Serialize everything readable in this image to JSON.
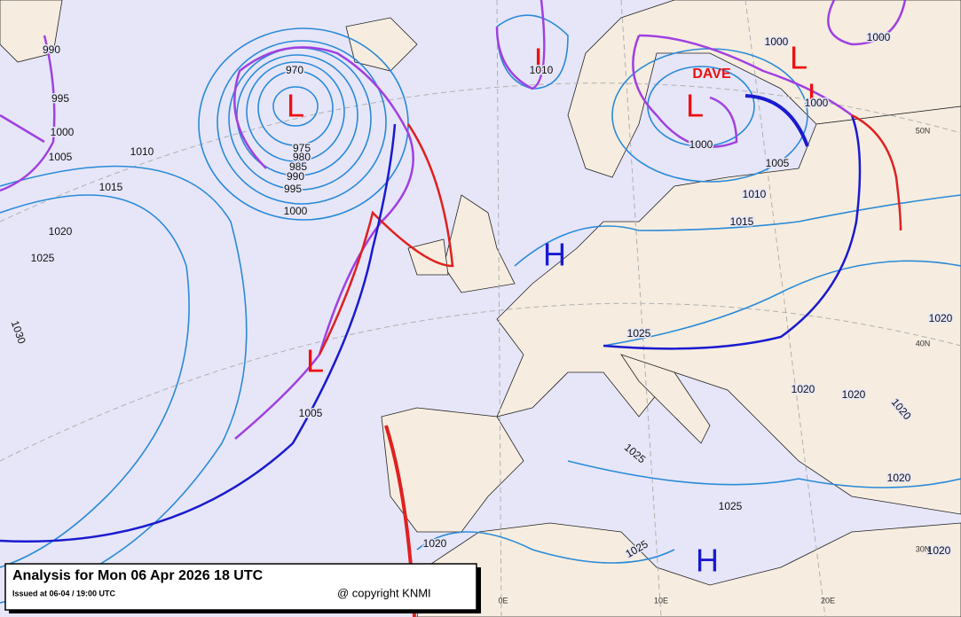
{
  "title": "Analysis for Mon 06 Apr 2026 18 UTC",
  "issued": "Issued at 06-04 / 19:00 UTC",
  "copyright": "@ copyright KNMI",
  "system_name": "DAVE",
  "pressure_centers": [
    {
      "label": "L",
      "kind": "low"
    },
    {
      "label": "L",
      "kind": "low"
    },
    {
      "label": "L",
      "kind": "low"
    },
    {
      "label": "L",
      "kind": "low"
    },
    {
      "label": "L",
      "kind": "low"
    },
    {
      "label": "L",
      "kind": "low"
    },
    {
      "label": "H",
      "kind": "high"
    },
    {
      "label": "H",
      "kind": "high"
    }
  ],
  "isobar_labels": [
    "990",
    "995",
    "1000",
    "1005",
    "1010",
    "1015",
    "1020",
    "1025",
    "1030",
    "970",
    "975",
    "980",
    "985",
    "990",
    "995",
    "1000",
    "1010",
    "1000",
    "1000",
    "1000",
    "1000",
    "1005",
    "1010",
    "1015",
    "1025",
    "1020",
    "1020",
    "1020",
    "1020",
    "1025",
    "1025",
    "1025",
    "1020",
    "1020",
    "1020",
    "1005"
  ],
  "grid_labels": [
    "50N",
    "40N",
    "30N",
    "0E",
    "10E",
    "20E"
  ]
}
